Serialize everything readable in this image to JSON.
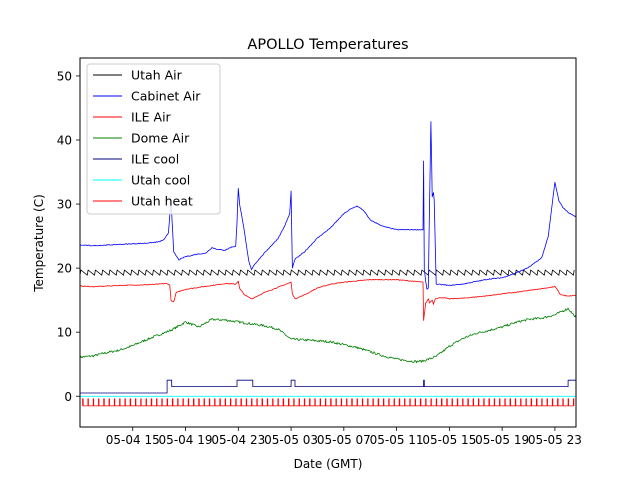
{
  "chart_data": {
    "type": "line",
    "title": "APOLLO Temperatures",
    "xlabel": "Date (GMT)",
    "ylabel": "Temperature (C)",
    "xlim": [
      11.0,
      48.6
    ],
    "ylim": [
      -4.8,
      52.8
    ],
    "x_ticks": [
      {
        "value": 15,
        "label": "05-04 15"
      },
      {
        "value": 19,
        "label": "05-04 19"
      },
      {
        "value": 23,
        "label": "05-04 23"
      },
      {
        "value": 27,
        "label": "05-05 03"
      },
      {
        "value": 31,
        "label": "05-05 07"
      },
      {
        "value": 35,
        "label": "05-05 11"
      },
      {
        "value": 39,
        "label": "05-05 15"
      },
      {
        "value": 43,
        "label": "05-05 19"
      },
      {
        "value": 47,
        "label": "05-05 23"
      }
    ],
    "y_ticks": [
      {
        "value": 0,
        "label": "0"
      },
      {
        "value": 10,
        "label": "10"
      },
      {
        "value": 20,
        "label": "20"
      },
      {
        "value": 30,
        "label": "30"
      },
      {
        "value": 40,
        "label": "40"
      },
      {
        "value": 50,
        "label": "50"
      }
    ],
    "legend_position": "top-left",
    "x_unit": "hours since 05-04 00 GMT (estimated)",
    "series": [
      {
        "name": "Utah Air",
        "color": "#000000",
        "style": "sawtooth",
        "low": 18.9,
        "high": 19.7,
        "period": 0.55,
        "x": [
          11.0,
          48.6
        ],
        "y": [
          19.3,
          19.3
        ]
      },
      {
        "name": "Cabinet Air",
        "color": "#0000ff",
        "x": [
          11.0,
          12.0,
          14.0,
          16.0,
          17.0,
          17.4,
          17.7,
          17.9,
          18.1,
          18.5,
          19.0,
          19.5,
          19.9,
          20.5,
          21.0,
          21.5,
          22.0,
          22.5,
          22.8,
          22.9,
          23.0,
          23.1,
          23.4,
          23.8,
          24.0,
          24.2,
          25.0,
          26.0,
          26.5,
          26.9,
          27.0,
          27.1,
          27.3,
          28.0,
          29.0,
          30.0,
          31.0,
          31.5,
          32.0,
          32.5,
          33.0,
          34.0,
          35.0,
          36.0,
          37.0,
          37.05,
          37.1,
          37.2,
          37.3,
          37.4,
          37.6,
          37.7,
          37.8,
          37.85,
          38.0,
          39.0,
          40.0,
          41.0,
          42.0,
          43.0,
          44.0,
          45.0,
          46.0,
          46.5,
          47.0,
          47.3,
          47.6,
          48.0,
          48.6
        ],
        "y": [
          23.6,
          23.5,
          23.7,
          23.9,
          24.1,
          24.5,
          25.5,
          30.7,
          22.5,
          21.3,
          21.8,
          22.0,
          22.2,
          22.3,
          23.2,
          22.9,
          22.8,
          23.3,
          23.4,
          27.0,
          32.5,
          30.0,
          26.5,
          21.0,
          19.8,
          20.5,
          22.4,
          24.6,
          26.5,
          28.5,
          32.0,
          20.0,
          21.4,
          22.5,
          24.7,
          26.3,
          28.5,
          29.2,
          29.7,
          29.0,
          27.5,
          26.5,
          26.0,
          26.0,
          26.0,
          36.7,
          19.8,
          18.0,
          16.7,
          16.9,
          42.8,
          31.2,
          31.8,
          30.6,
          17.5,
          17.3,
          17.5,
          17.9,
          18.3,
          18.5,
          19.2,
          20.1,
          21.6,
          25.0,
          33.4,
          30.5,
          29.5,
          28.7,
          28.0
        ]
      },
      {
        "name": "ILE Air",
        "color": "#ff0000",
        "x": [
          11.0,
          12.0,
          14.0,
          16.0,
          17.0,
          17.5,
          17.8,
          17.9,
          18.1,
          18.3,
          19.0,
          20.0,
          21.0,
          22.0,
          22.8,
          23.0,
          23.1,
          23.5,
          24.0,
          24.5,
          25.0,
          26.0,
          27.0,
          27.1,
          27.3,
          28.0,
          29.0,
          30.0,
          31.0,
          32.0,
          33.0,
          34.0,
          35.0,
          36.0,
          37.0,
          37.05,
          37.2,
          37.4,
          37.5,
          37.7,
          37.8,
          37.9,
          38.0,
          38.5,
          39.0,
          40.0,
          41.0,
          42.0,
          43.0,
          44.0,
          45.0,
          46.0,
          47.0,
          47.2,
          47.4,
          48.0,
          48.6
        ],
        "y": [
          17.2,
          17.1,
          17.3,
          17.4,
          17.5,
          17.6,
          17.4,
          15.0,
          14.7,
          16.2,
          16.7,
          17.0,
          17.3,
          17.6,
          17.5,
          18.0,
          16.8,
          15.8,
          15.2,
          15.7,
          16.2,
          17.0,
          17.8,
          16.0,
          15.2,
          15.8,
          16.9,
          17.5,
          17.8,
          18.0,
          18.2,
          18.2,
          18.2,
          18.0,
          17.8,
          11.8,
          14.5,
          15.2,
          14.6,
          15.0,
          14.4,
          15.1,
          15.3,
          15.4,
          15.2,
          15.3,
          15.5,
          15.7,
          16.0,
          16.2,
          16.5,
          16.8,
          17.1,
          16.6,
          15.9,
          15.6,
          15.8
        ]
      },
      {
        "name": "Dome Air",
        "color": "#008000",
        "x": [
          11.0,
          12.0,
          13.0,
          14.0,
          15.0,
          16.0,
          17.0,
          17.5,
          18.0,
          19.0,
          20.0,
          21.0,
          22.0,
          23.0,
          24.0,
          25.0,
          26.0,
          27.0,
          28.0,
          30.0,
          32.0,
          34.0,
          35.0,
          36.0,
          36.5,
          37.0,
          38.0,
          39.0,
          40.0,
          41.0,
          42.0,
          43.0,
          44.0,
          45.0,
          46.0,
          47.0,
          48.0,
          48.6
        ],
        "y": [
          6.1,
          6.3,
          6.8,
          7.2,
          7.9,
          8.8,
          9.6,
          10.0,
          10.4,
          11.6,
          10.8,
          12.0,
          11.9,
          11.6,
          11.3,
          11.0,
          10.5,
          8.9,
          8.8,
          8.5,
          7.6,
          6.3,
          5.8,
          5.5,
          5.4,
          5.5,
          6.2,
          7.8,
          9.0,
          9.8,
          10.3,
          10.8,
          11.5,
          12.0,
          12.2,
          12.7,
          13.7,
          12.3
        ]
      },
      {
        "name": "ILE cool",
        "color": "#000080",
        "x": [
          11.0,
          17.6,
          17.6,
          17.95,
          17.95,
          22.9,
          22.9,
          24.1,
          24.1,
          27.0,
          27.0,
          27.3,
          27.3,
          37.05,
          37.05,
          37.1,
          37.1,
          48.0,
          48.0,
          48.6
        ],
        "y": [
          0.5,
          0.5,
          2.5,
          2.5,
          1.5,
          1.5,
          2.5,
          2.5,
          1.5,
          1.5,
          2.5,
          2.5,
          1.5,
          1.5,
          2.5,
          2.5,
          1.5,
          1.5,
          2.5,
          2.5
        ]
      },
      {
        "name": "Utah cool",
        "color": "#00ffff",
        "x": [
          11.0,
          48.6
        ],
        "y": [
          0.0,
          0.0
        ]
      },
      {
        "name": "Utah heat",
        "color": "#ff0000",
        "style": "pulses",
        "base": -1.5,
        "pulse_top": -0.4,
        "period": 0.4,
        "x": [
          11.0,
          48.6
        ],
        "y": [
          -1.5,
          -1.5
        ]
      }
    ]
  }
}
